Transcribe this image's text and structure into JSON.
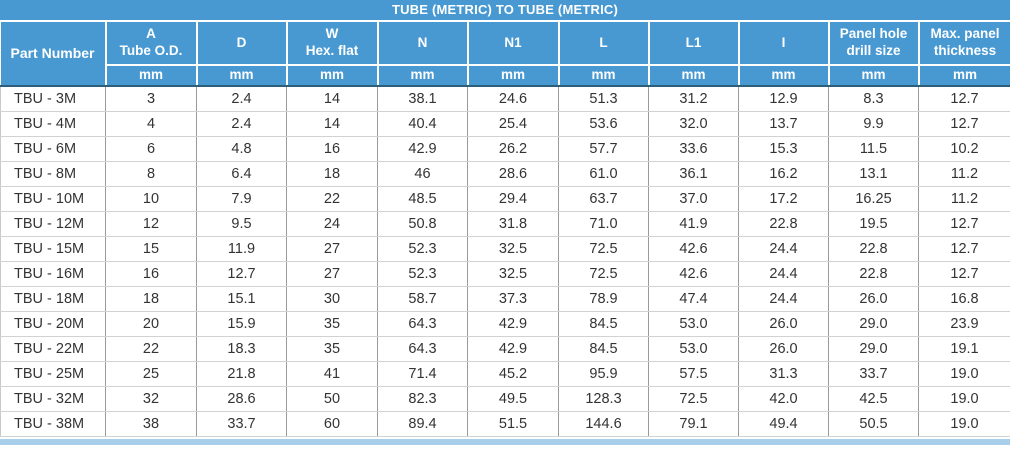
{
  "title": "TUBE (METRIC) TO TUBE (METRIC)",
  "table": {
    "columns": [
      {
        "label": "Part Number",
        "unit": ""
      },
      {
        "label": "A\nTube O.D.",
        "unit": "mm"
      },
      {
        "label": "D",
        "unit": "mm"
      },
      {
        "label": "W\nHex. flat",
        "unit": "mm"
      },
      {
        "label": "N",
        "unit": "mm"
      },
      {
        "label": "N1",
        "unit": "mm"
      },
      {
        "label": "L",
        "unit": "mm"
      },
      {
        "label": "L1",
        "unit": "mm"
      },
      {
        "label": "I",
        "unit": "mm"
      },
      {
        "label": "Panel hole\ndrill size",
        "unit": "mm"
      },
      {
        "label": "Max. panel\nthickness",
        "unit": "mm"
      }
    ],
    "rows": [
      [
        "TBU - 3M",
        "3",
        "2.4",
        "14",
        "38.1",
        "24.6",
        "51.3",
        "31.2",
        "12.9",
        "8.3",
        "12.7"
      ],
      [
        "TBU - 4M",
        "4",
        "2.4",
        "14",
        "40.4",
        "25.4",
        "53.6",
        "32.0",
        "13.7",
        "9.9",
        "12.7"
      ],
      [
        "TBU - 6M",
        "6",
        "4.8",
        "16",
        "42.9",
        "26.2",
        "57.7",
        "33.6",
        "15.3",
        "11.5",
        "10.2"
      ],
      [
        "TBU - 8M",
        "8",
        "6.4",
        "18",
        "46",
        "28.6",
        "61.0",
        "36.1",
        "16.2",
        "13.1",
        "11.2"
      ],
      [
        "TBU - 10M",
        "10",
        "7.9",
        "22",
        "48.5",
        "29.4",
        "63.7",
        "37.0",
        "17.2",
        "16.25",
        "11.2"
      ],
      [
        "TBU - 12M",
        "12",
        "9.5",
        "24",
        "50.8",
        "31.8",
        "71.0",
        "41.9",
        "22.8",
        "19.5",
        "12.7"
      ],
      [
        "TBU - 15M",
        "15",
        "11.9",
        "27",
        "52.3",
        "32.5",
        "72.5",
        "42.6",
        "24.4",
        "22.8",
        "12.7"
      ],
      [
        "TBU - 16M",
        "16",
        "12.7",
        "27",
        "52.3",
        "32.5",
        "72.5",
        "42.6",
        "24.4",
        "22.8",
        "12.7"
      ],
      [
        "TBU - 18M",
        "18",
        "15.1",
        "30",
        "58.7",
        "37.3",
        "78.9",
        "47.4",
        "24.4",
        "26.0",
        "16.8"
      ],
      [
        "TBU - 20M",
        "20",
        "15.9",
        "35",
        "64.3",
        "42.9",
        "84.5",
        "53.0",
        "26.0",
        "29.0",
        "23.9"
      ],
      [
        "TBU - 22M",
        "22",
        "18.3",
        "35",
        "64.3",
        "42.9",
        "84.5",
        "53.0",
        "26.0",
        "29.0",
        "19.1"
      ],
      [
        "TBU - 25M",
        "25",
        "21.8",
        "41",
        "71.4",
        "45.2",
        "95.9",
        "57.5",
        "31.3",
        "33.7",
        "19.0"
      ],
      [
        "TBU - 32M",
        "32",
        "28.6",
        "50",
        "82.3",
        "49.5",
        "128.3",
        "72.5",
        "42.0",
        "42.5",
        "19.0"
      ],
      [
        "TBU - 38M",
        "38",
        "33.7",
        "60",
        "89.4",
        "51.5",
        "144.6",
        "79.1",
        "49.4",
        "50.5",
        "19.0"
      ]
    ]
  },
  "colors": {
    "header_blue": "#4899d2",
    "header_divider_white": "#ffffff",
    "header_bottom_line": "#2d5f7d",
    "grid_vertical": "#9b9b9b",
    "grid_horizontal": "#d2d2d2",
    "body_text": "#333333",
    "bottom_strip_blue": "#a9cee9"
  }
}
